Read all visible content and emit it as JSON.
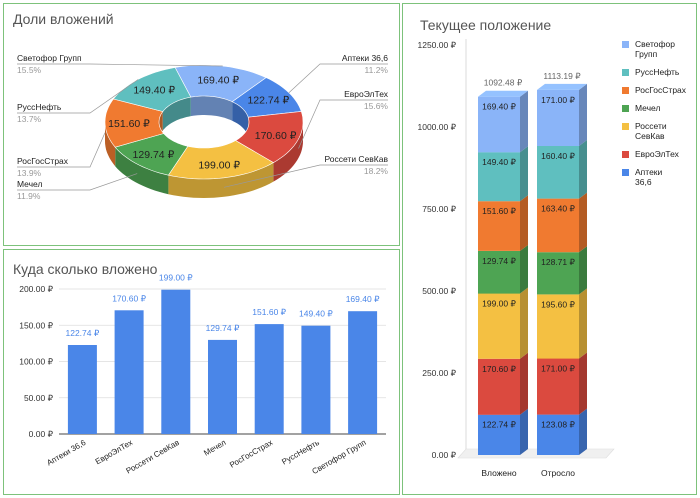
{
  "chart_data": [
    {
      "type": "pie",
      "title": "Доли вложений",
      "slices": [
        {
          "name": "Светофор Групп",
          "value": 169.4,
          "label": "169.40 ₽",
          "percent": "15.5%",
          "color": "#8ab4f8"
        },
        {
          "name": "Аптеки 36,6",
          "value": 122.74,
          "label": "122.74 ₽",
          "percent": "11.2%",
          "color": "#4a86e8"
        },
        {
          "name": "ЕвроЭлТех",
          "value": 170.6,
          "label": "170.60 ₽",
          "percent": "15.6%",
          "color": "#db4a3f"
        },
        {
          "name": "Россети СевКав",
          "value": 199.0,
          "label": "199.00 ₽",
          "percent": "18.2%",
          "color": "#f4c042"
        },
        {
          "name": "Мечел",
          "value": 129.74,
          "label": "129.74 ₽",
          "percent": "11.9%",
          "color": "#4ea453"
        },
        {
          "name": "РосГосСтрах",
          "value": 151.6,
          "label": "151.60 ₽",
          "percent": "13.9%",
          "color": "#f07a30"
        },
        {
          "name": "РуссНефть",
          "value": 149.4,
          "label": "149.40 ₽",
          "percent": "13.7%",
          "color": "#5fbfbf"
        }
      ]
    },
    {
      "type": "bar",
      "title": "Куда сколько вложено",
      "categories": [
        "Аптеки 36,6",
        "ЕвроЭлТех",
        "Россети СевКав",
        "Мечел",
        "РосГосСтрах",
        "РуссНефть",
        "Светофор Групп"
      ],
      "values": [
        122.74,
        170.6,
        199.0,
        129.74,
        151.6,
        149.4,
        169.4
      ],
      "value_labels": [
        "122.74 ₽",
        "170.60 ₽",
        "199.00 ₽",
        "129.74 ₽",
        "151.60 ₽",
        "149.40 ₽",
        "169.40 ₽"
      ],
      "yticks": [
        "0.00 ₽",
        "50.00 ₽",
        "100.00 ₽",
        "150.00 ₽",
        "200.00 ₽"
      ],
      "ylim": [
        0,
        200
      ],
      "color": "#4a86e8",
      "label_color": "#4a86e8"
    },
    {
      "type": "bar",
      "stacked": true,
      "title": "Текущее положение",
      "categories": [
        "Вложено",
        "Отросло"
      ],
      "totals": [
        "1092.48 ₽",
        "1113.19 ₽"
      ],
      "yticks": [
        "0.00 ₽",
        "250.00 ₽",
        "500.00 ₽",
        "750.00 ₽",
        "1000.00 ₽",
        "1250.00 ₽"
      ],
      "ylim": [
        0,
        1250
      ],
      "series": [
        {
          "name": "Аптеки 36,6",
          "color": "#4a86e8",
          "values": [
            122.74,
            123.08
          ],
          "labels": [
            "122.74 ₽",
            "123.08 ₽"
          ]
        },
        {
          "name": "ЕвроЭлТех",
          "color": "#db4a3f",
          "values": [
            170.6,
            171.0
          ],
          "labels": [
            "170.60 ₽",
            "171.00 ₽"
          ]
        },
        {
          "name": "Россети СевКав",
          "color": "#f4c042",
          "values": [
            199.0,
            195.6
          ],
          "labels": [
            "199.00 ₽",
            "195.60 ₽"
          ]
        },
        {
          "name": "Мечел",
          "color": "#4ea453",
          "values": [
            129.74,
            128.71
          ],
          "labels": [
            "129.74 ₽",
            "128.71 ₽"
          ]
        },
        {
          "name": "РосГосСтрах",
          "color": "#f07a30",
          "values": [
            151.6,
            163.4
          ],
          "labels": [
            "151.60 ₽",
            "163.40 ₽"
          ]
        },
        {
          "name": "РуссНефть",
          "color": "#5fbfbf",
          "values": [
            149.4,
            160.4
          ],
          "labels": [
            "149.40 ₽",
            "160.40 ₽"
          ]
        },
        {
          "name": "Светофор Групп",
          "color": "#8ab4f8",
          "values": [
            169.4,
            171.0
          ],
          "labels": [
            "169.40 ₽",
            "171.00 ₽"
          ]
        }
      ],
      "legend_order": [
        "Светофор Групп",
        "РуссНефть",
        "РосГосСтрах",
        "Мечел",
        "Россети СевКав",
        "ЕвроЭлТех",
        "Аптеки 36,6"
      ]
    }
  ]
}
